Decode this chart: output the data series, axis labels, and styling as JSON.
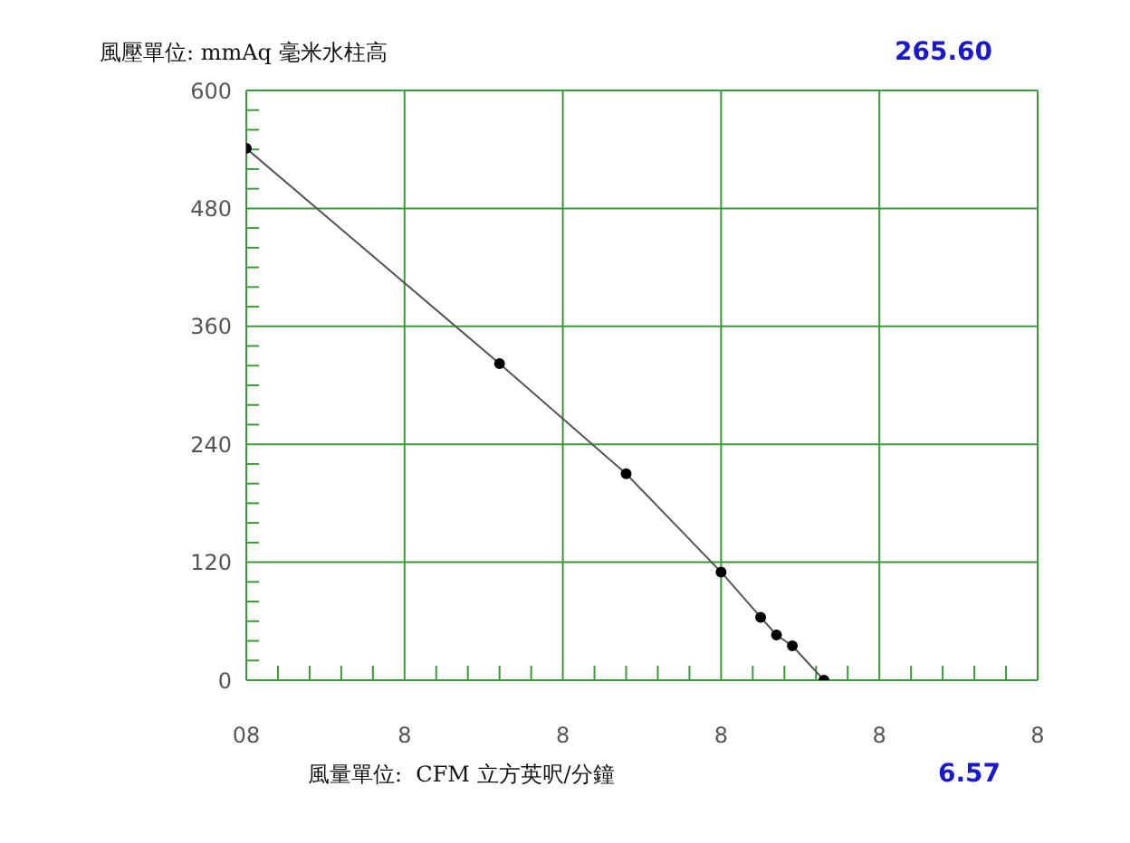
{
  "chart_data": {
    "type": "line",
    "ylabel": "風壓單位: mmAq 毫米水柱高",
    "xlabel": "風量單位:  CFM 立方英呎/分鐘",
    "annotations": [
      "265.60",
      "6.57"
    ],
    "categories": [
      "08",
      null,
      null,
      null,
      null,
      null,
      null,
      null,
      null,
      null,
      null,
      null,
      null,
      null,
      null,
      null,
      null,
      null,
      null,
      null,
      "8",
      null,
      null,
      null,
      null,
      null,
      null,
      null,
      null,
      null,
      null,
      null,
      null,
      null,
      null,
      null,
      null,
      null,
      null,
      null,
      "8",
      null,
      null,
      null,
      null,
      null,
      null,
      null,
      null,
      null,
      null,
      null,
      null,
      null,
      null,
      null,
      null,
      null,
      null,
      null,
      "8",
      null,
      null,
      null,
      null,
      null,
      null,
      null,
      null,
      null,
      null,
      null,
      null,
      null,
      null,
      null,
      null,
      null,
      null,
      null,
      "8",
      null,
      null,
      null,
      null,
      null,
      null,
      null,
      null,
      null,
      null,
      null,
      null,
      null,
      null,
      null,
      null,
      null,
      null,
      null,
      "8"
    ],
    "series": [
      {
        "color": "#555555",
        "values": [
          541,
          null,
          null,
          null,
          null,
          null,
          null,
          null,
          null,
          null,
          null,
          null,
          null,
          null,
          null,
          null,
          null,
          null,
          null,
          null,
          null,
          null,
          null,
          null,
          null,
          null,
          null,
          null,
          null,
          null,
          null,
          null,
          322,
          null,
          null,
          null,
          null,
          null,
          null,
          null,
          null,
          null,
          null,
          null,
          null,
          null,
          null,
          null,
          210,
          null,
          null,
          null,
          null,
          null,
          null,
          null,
          null,
          null,
          null,
          null,
          110,
          null,
          null,
          null,
          null,
          64,
          null,
          46,
          null,
          35,
          null,
          null,
          null,
          0,
          null,
          null,
          null,
          null,
          null,
          null,
          null,
          null,
          null,
          null,
          null,
          null,
          null,
          null,
          null,
          null,
          null,
          null,
          null,
          null,
          null,
          null,
          null,
          null,
          null,
          null,
          null
        ]
      }
    ],
    "ylim": [
      0,
      600
    ],
    "yticks": [
      0,
      {
        "value": 20,
        "label": null
      },
      {
        "value": 40,
        "label": null
      },
      {
        "value": 60,
        "label": null
      },
      {
        "value": 80,
        "label": null
      },
      {
        "value": 100,
        "label": null
      },
      120,
      {
        "value": 140,
        "label": null
      },
      {
        "value": 160,
        "label": null
      },
      {
        "value": 180,
        "label": null
      },
      {
        "value": 200,
        "label": null
      },
      {
        "value": 220,
        "label": null
      },
      240,
      {
        "value": 260,
        "label": null
      },
      {
        "value": 280,
        "label": null
      },
      {
        "value": 300,
        "label": null
      },
      {
        "value": 320,
        "label": null
      },
      {
        "value": 340,
        "label": null
      },
      360,
      {
        "value": 380,
        "label": null
      },
      {
        "value": 400,
        "label": null
      },
      {
        "value": 420,
        "label": null
      },
      {
        "value": 440,
        "label": null
      },
      {
        "value": 460,
        "label": null
      },
      480,
      {
        "value": 500,
        "label": null
      },
      {
        "value": 520,
        "label": null
      },
      {
        "value": 540,
        "label": null
      },
      {
        "value": 560,
        "label": null
      },
      {
        "value": 580,
        "label": null
      },
      600
    ],
    "grid": true,
    "marker": "circle",
    "line_style": "solid"
  }
}
